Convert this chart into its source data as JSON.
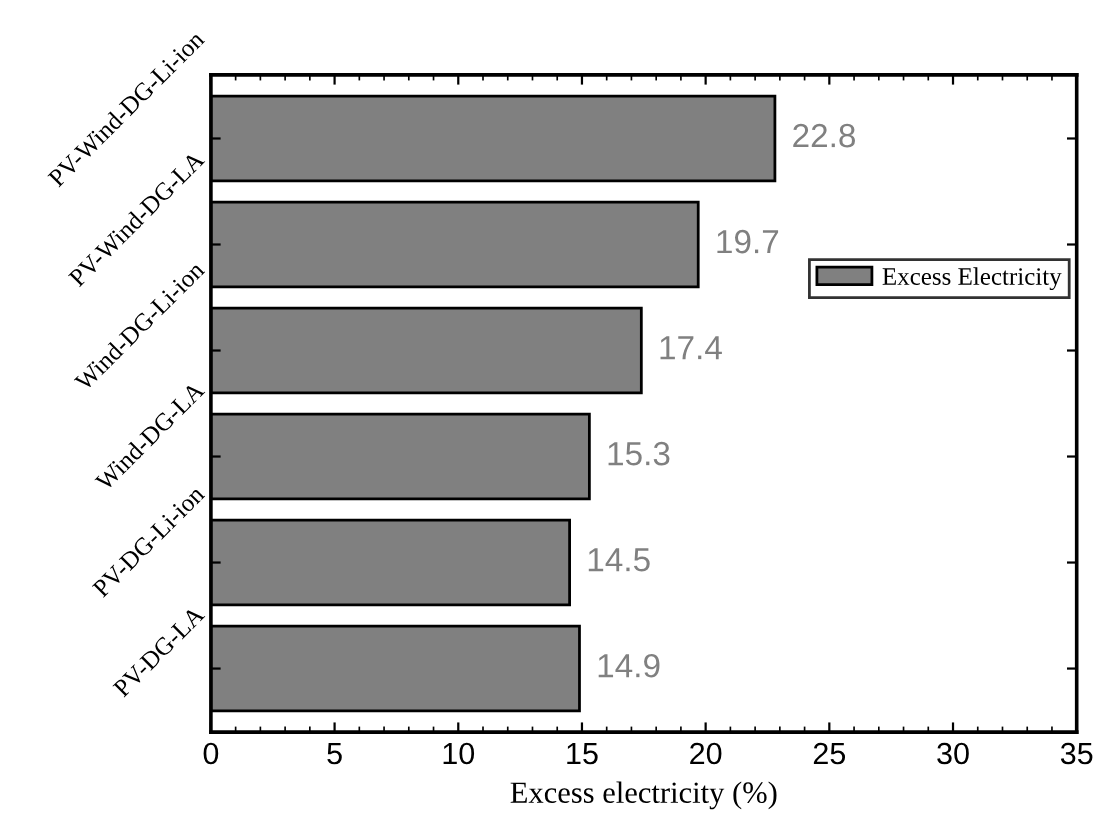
{
  "chart_data": {
    "type": "bar",
    "orientation": "horizontal",
    "xlabel": "Excess electricity (%)",
    "categories": [
      "PV-Wind-DG-Li-ion",
      "PV-Wind-DG-LA",
      "Wind-DG-Li-ion",
      "Wind-DG-LA",
      "PV-DG-Li-ion",
      "PV-DG-LA"
    ],
    "series": [
      {
        "name": "Excess Electricity",
        "color": "#808080",
        "values": [
          22.8,
          19.7,
          17.4,
          15.3,
          14.5,
          14.9
        ]
      }
    ],
    "xlim": [
      0,
      35
    ],
    "xticks": [
      0,
      5,
      10,
      15,
      20,
      25,
      30,
      35
    ],
    "data_labels": true,
    "legend": "right",
    "grid": false
  }
}
